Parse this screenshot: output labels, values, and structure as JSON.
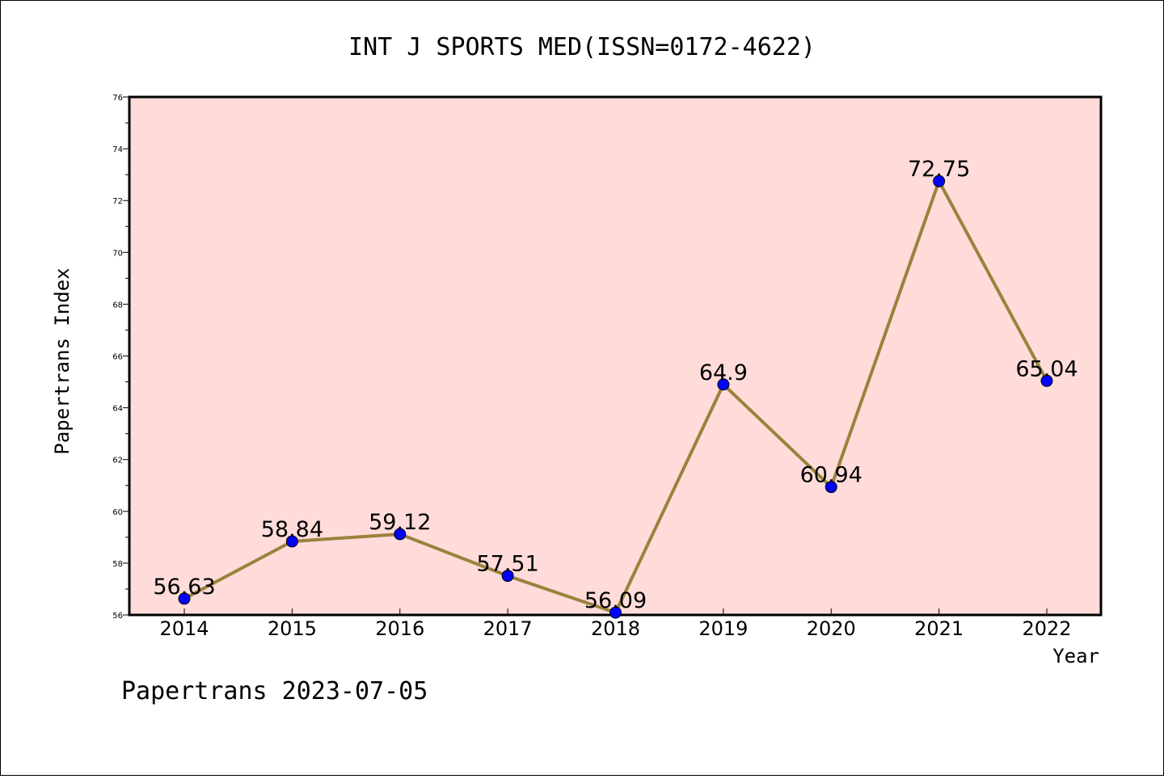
{
  "chart_data": {
    "type": "line",
    "title": "INT J SPORTS MED(ISSN=0172-4622)",
    "xlabel": "Year",
    "ylabel": "Papertrans Index",
    "x": [
      "2014",
      "2015",
      "2016",
      "2017",
      "2018",
      "2019",
      "2020",
      "2021",
      "2022"
    ],
    "series": [
      {
        "values": [
          56.63,
          58.84,
          59.12,
          57.51,
          56.09,
          64.9,
          60.94,
          72.75,
          65.04
        ],
        "labels": [
          "56.63",
          "58.84",
          "59.12",
          "57.51",
          "56.09",
          "64.9",
          "60.94",
          "72.75",
          "65.04"
        ]
      }
    ],
    "ylim": [
      56,
      76
    ],
    "yticks": [
      "56",
      "58",
      "60",
      "62",
      "64",
      "66",
      "68",
      "70",
      "72",
      "74",
      "76"
    ],
    "grid": false,
    "colors": {
      "plot_background": "#FFDCDA",
      "line": "#9A823C",
      "marker": "#0000FF"
    }
  },
  "footer": "Papertrans 2023-07-05"
}
